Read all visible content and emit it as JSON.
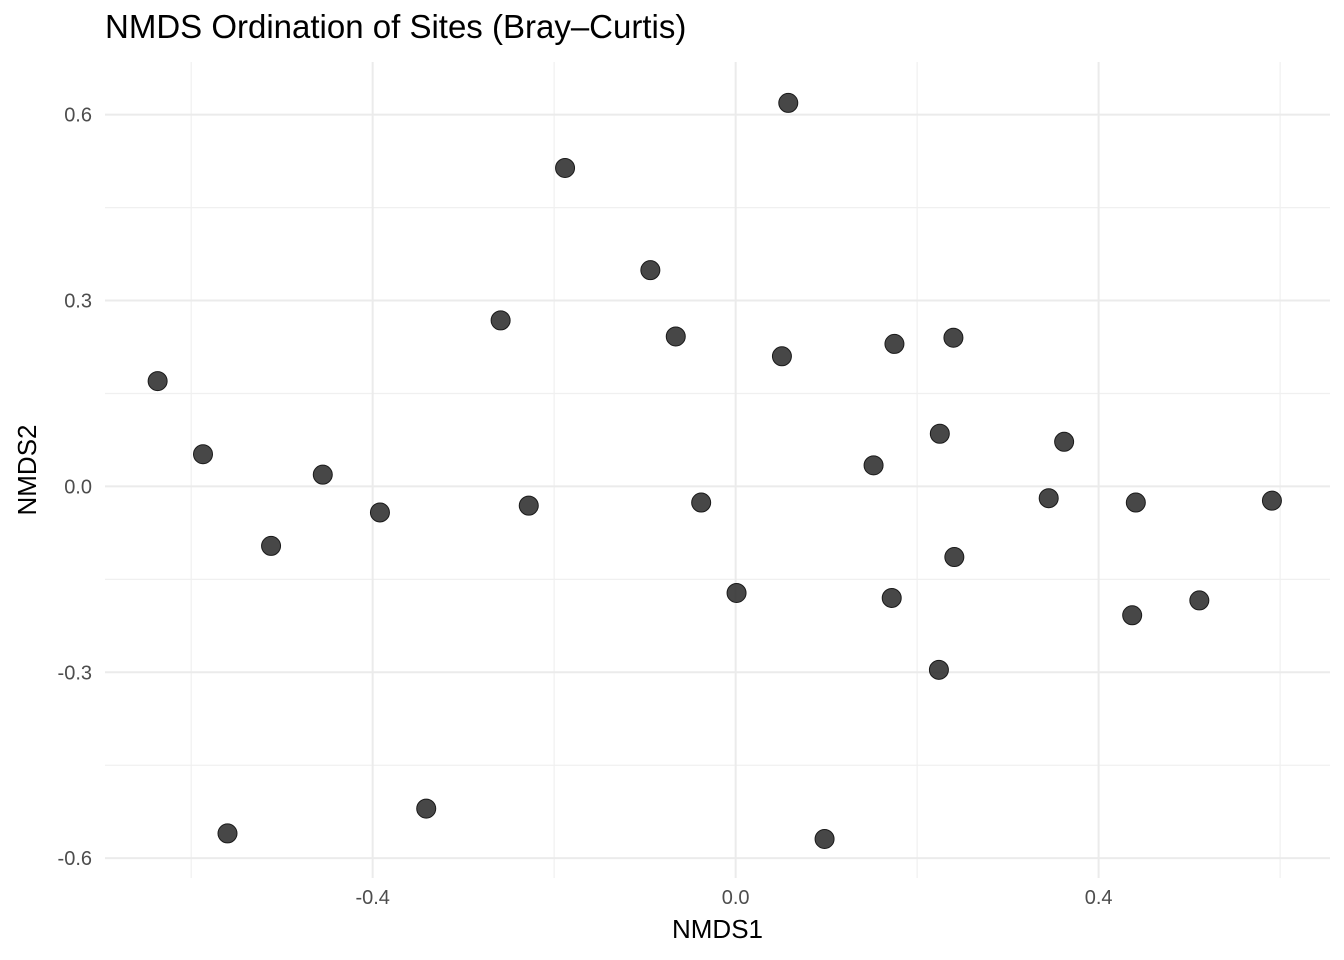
{
  "chart_data": {
    "type": "scatter",
    "title": "NMDS Ordination of Sites (Bray–Curtis)",
    "xlabel": "NMDS1",
    "ylabel": "NMDS2",
    "xlim": [
      -0.695,
      0.655
    ],
    "ylim": [
      -0.632,
      0.685
    ],
    "x_ticks": [
      -0.4,
      0.0,
      0.4
    ],
    "x_tick_labels": [
      "-0.4",
      "0.0",
      "0.4"
    ],
    "y_ticks": [
      0.6,
      0.3,
      0.0,
      -0.3,
      -0.6
    ],
    "y_tick_labels": [
      "0.6",
      "0.3",
      "0.0",
      "-0.3",
      "-0.6"
    ],
    "grid": true,
    "point_color": "#333333",
    "points": [
      {
        "x": -0.637,
        "y": 0.17
      },
      {
        "x": -0.587,
        "y": 0.052
      },
      {
        "x": -0.512,
        "y": -0.096
      },
      {
        "x": -0.455,
        "y": 0.019
      },
      {
        "x": -0.392,
        "y": -0.042
      },
      {
        "x": -0.259,
        "y": 0.268
      },
      {
        "x": -0.228,
        "y": -0.031
      },
      {
        "x": -0.188,
        "y": 0.514
      },
      {
        "x": -0.094,
        "y": 0.349
      },
      {
        "x": -0.066,
        "y": 0.242
      },
      {
        "x": -0.038,
        "y": -0.026
      },
      {
        "x": 0.001,
        "y": -0.172
      },
      {
        "x": 0.051,
        "y": 0.21
      },
      {
        "x": 0.058,
        "y": 0.619
      },
      {
        "x": 0.098,
        "y": -0.569
      },
      {
        "x": 0.152,
        "y": 0.034
      },
      {
        "x": 0.172,
        "y": -0.18
      },
      {
        "x": 0.175,
        "y": 0.23
      },
      {
        "x": 0.225,
        "y": 0.085
      },
      {
        "x": 0.224,
        "y": -0.296
      },
      {
        "x": 0.24,
        "y": 0.24
      },
      {
        "x": 0.241,
        "y": -0.114
      },
      {
        "x": 0.345,
        "y": -0.019
      },
      {
        "x": 0.362,
        "y": 0.072
      },
      {
        "x": 0.441,
        "y": -0.026
      },
      {
        "x": 0.437,
        "y": -0.208
      },
      {
        "x": 0.511,
        "y": -0.184
      },
      {
        "x": 0.591,
        "y": -0.023
      },
      {
        "x": -0.56,
        "y": -0.56
      },
      {
        "x": -0.341,
        "y": -0.52
      }
    ]
  }
}
